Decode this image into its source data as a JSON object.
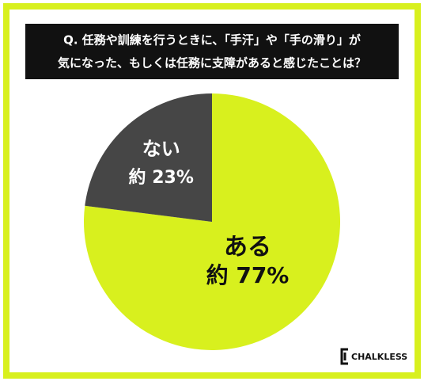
{
  "chart_data": {
    "type": "pie",
    "title": [
      "Q. 任務や訓練を行うときに、「手汗」や「手の滑り」が",
      "気になった、もしくは任務に支障があると感じたことは？"
    ],
    "categories": [
      "ある",
      "ない"
    ],
    "values": [
      77,
      23
    ],
    "value_labels": [
      "約 77%",
      "約 23%"
    ],
    "colors": [
      "#d8f01e",
      "#464646"
    ]
  },
  "logo": "CHALKLESS"
}
